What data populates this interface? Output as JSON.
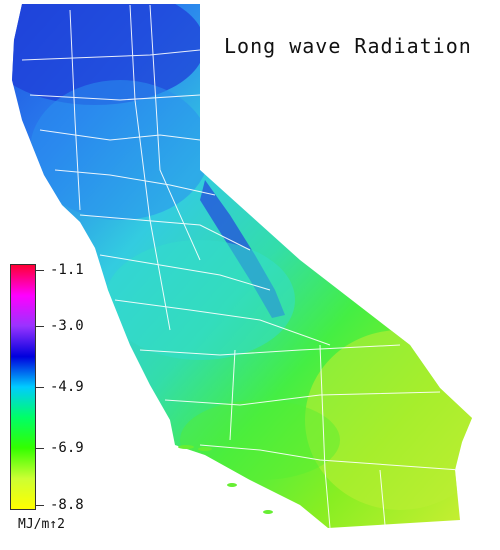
{
  "title": "Long wave Radiation",
  "legend": {
    "unit": "MJ/m↑2",
    "ticks": [
      "-1.1",
      "-3.0",
      "-4.9",
      "-6.9",
      "-8.8"
    ],
    "colors": [
      "#ff0033",
      "#ff00ff",
      "#9933ff",
      "#0000dd",
      "#00ccff",
      "#00ff66",
      "#33ff00",
      "#ccff33",
      "#ffff00"
    ]
  },
  "map_colors": {
    "north": "#2a66ee",
    "north_central": "#2aa6ee",
    "central_valley": "#33ddcc",
    "sierra": "#2255ee",
    "coast": "#22ccaa",
    "south": "#55ee22",
    "desert": "#aaee33",
    "county_lines": "#ffffff"
  }
}
